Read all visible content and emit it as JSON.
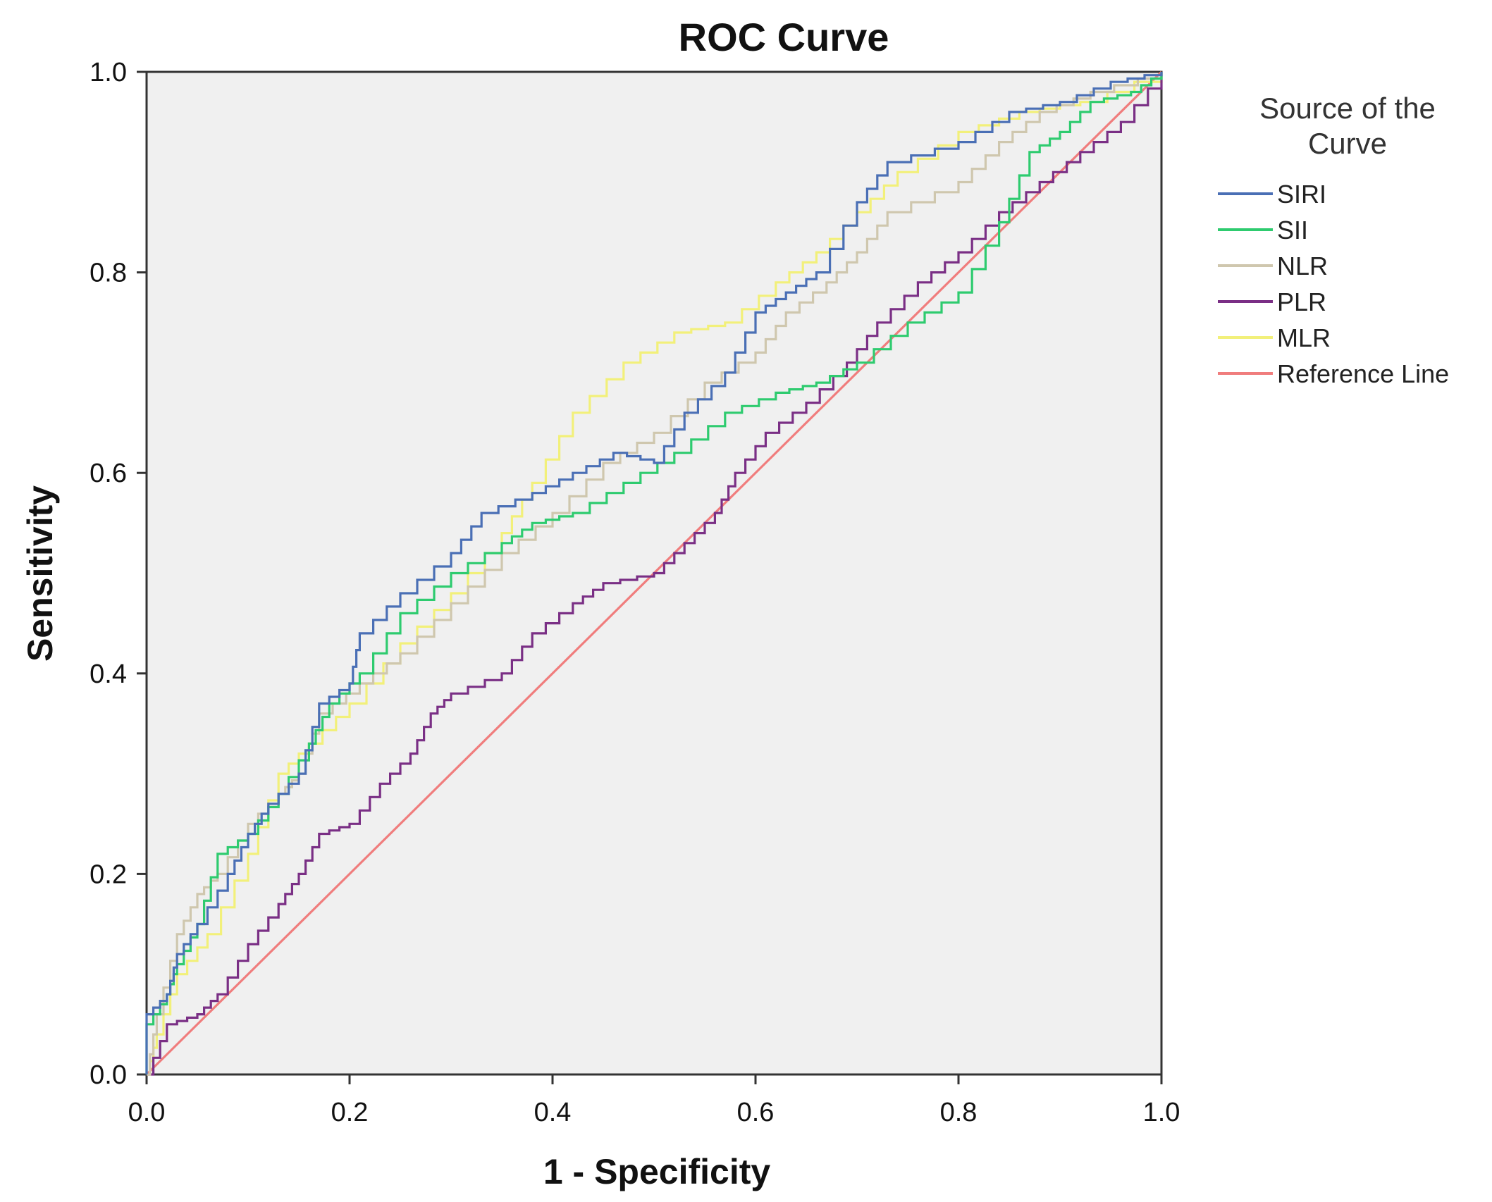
{
  "chart_data": {
    "type": "line",
    "title": "ROC Curve",
    "xlabel": "1 - Specificity",
    "ylabel": "Sensitivity",
    "xlim": [
      0,
      1
    ],
    "ylim": [
      0,
      1
    ],
    "xticks": [
      "0.0",
      "0.2",
      "0.4",
      "0.6",
      "0.8",
      "1.0"
    ],
    "yticks": [
      "0.0",
      "0.2",
      "0.4",
      "0.6",
      "0.8",
      "1.0"
    ],
    "grid": false,
    "legend": {
      "title_lines": [
        "Source of the",
        "Curve"
      ],
      "placement": "right"
    },
    "series": [
      {
        "name": "SIRI",
        "color": "#4a6fb5",
        "points": [
          [
            0,
            0
          ],
          [
            0,
            0.06
          ],
          [
            0.02,
            0.08
          ],
          [
            0.03,
            0.12
          ],
          [
            0.05,
            0.15
          ],
          [
            0.08,
            0.2
          ],
          [
            0.1,
            0.24
          ],
          [
            0.12,
            0.27
          ],
          [
            0.15,
            0.3
          ],
          [
            0.17,
            0.37
          ],
          [
            0.2,
            0.39
          ],
          [
            0.21,
            0.44
          ],
          [
            0.25,
            0.48
          ],
          [
            0.3,
            0.52
          ],
          [
            0.33,
            0.56
          ],
          [
            0.38,
            0.58
          ],
          [
            0.42,
            0.6
          ],
          [
            0.46,
            0.62
          ],
          [
            0.5,
            0.61
          ],
          [
            0.53,
            0.66
          ],
          [
            0.57,
            0.7
          ],
          [
            0.6,
            0.76
          ],
          [
            0.63,
            0.78
          ],
          [
            0.66,
            0.8
          ],
          [
            0.7,
            0.87
          ],
          [
            0.73,
            0.91
          ],
          [
            0.8,
            0.93
          ],
          [
            0.85,
            0.96
          ],
          [
            0.9,
            0.97
          ],
          [
            0.95,
            0.99
          ],
          [
            1,
            1
          ]
        ]
      },
      {
        "name": "SII",
        "color": "#2ecb6f",
        "points": [
          [
            0,
            0
          ],
          [
            0,
            0.05
          ],
          [
            0.02,
            0.08
          ],
          [
            0.03,
            0.11
          ],
          [
            0.05,
            0.15
          ],
          [
            0.07,
            0.22
          ],
          [
            0.1,
            0.24
          ],
          [
            0.13,
            0.28
          ],
          [
            0.16,
            0.33
          ],
          [
            0.18,
            0.37
          ],
          [
            0.21,
            0.4
          ],
          [
            0.25,
            0.46
          ],
          [
            0.3,
            0.5
          ],
          [
            0.35,
            0.53
          ],
          [
            0.38,
            0.55
          ],
          [
            0.42,
            0.56
          ],
          [
            0.47,
            0.59
          ],
          [
            0.52,
            0.62
          ],
          [
            0.57,
            0.66
          ],
          [
            0.62,
            0.68
          ],
          [
            0.66,
            0.69
          ],
          [
            0.7,
            0.71
          ],
          [
            0.75,
            0.75
          ],
          [
            0.8,
            0.78
          ],
          [
            0.84,
            0.85
          ],
          [
            0.87,
            0.92
          ],
          [
            0.9,
            0.94
          ],
          [
            0.93,
            0.97
          ],
          [
            0.97,
            0.98
          ],
          [
            1,
            1
          ]
        ]
      },
      {
        "name": "NLR",
        "color": "#cfc7ae",
        "points": [
          [
            0,
            0
          ],
          [
            0.01,
            0.06
          ],
          [
            0.03,
            0.14
          ],
          [
            0.05,
            0.18
          ],
          [
            0.07,
            0.2
          ],
          [
            0.1,
            0.25
          ],
          [
            0.13,
            0.28
          ],
          [
            0.15,
            0.3
          ],
          [
            0.17,
            0.36
          ],
          [
            0.21,
            0.39
          ],
          [
            0.25,
            0.42
          ],
          [
            0.3,
            0.47
          ],
          [
            0.35,
            0.52
          ],
          [
            0.4,
            0.56
          ],
          [
            0.45,
            0.61
          ],
          [
            0.5,
            0.64
          ],
          [
            0.55,
            0.69
          ],
          [
            0.6,
            0.72
          ],
          [
            0.63,
            0.76
          ],
          [
            0.67,
            0.79
          ],
          [
            0.7,
            0.82
          ],
          [
            0.73,
            0.86
          ],
          [
            0.8,
            0.89
          ],
          [
            0.84,
            0.93
          ],
          [
            0.88,
            0.96
          ],
          [
            0.93,
            0.98
          ],
          [
            1,
            1
          ]
        ]
      },
      {
        "name": "PLR",
        "color": "#7a2f85",
        "points": [
          [
            0,
            0
          ],
          [
            0.02,
            0.05
          ],
          [
            0.05,
            0.06
          ],
          [
            0.07,
            0.08
          ],
          [
            0.1,
            0.13
          ],
          [
            0.13,
            0.17
          ],
          [
            0.15,
            0.2
          ],
          [
            0.17,
            0.24
          ],
          [
            0.2,
            0.25
          ],
          [
            0.23,
            0.29
          ],
          [
            0.26,
            0.32
          ],
          [
            0.28,
            0.36
          ],
          [
            0.3,
            0.38
          ],
          [
            0.35,
            0.4
          ],
          [
            0.38,
            0.44
          ],
          [
            0.42,
            0.47
          ],
          [
            0.45,
            0.49
          ],
          [
            0.5,
            0.5
          ],
          [
            0.53,
            0.53
          ],
          [
            0.56,
            0.56
          ],
          [
            0.58,
            0.6
          ],
          [
            0.61,
            0.64
          ],
          [
            0.65,
            0.67
          ],
          [
            0.69,
            0.71
          ],
          [
            0.72,
            0.75
          ],
          [
            0.76,
            0.79
          ],
          [
            0.8,
            0.82
          ],
          [
            0.84,
            0.86
          ],
          [
            0.88,
            0.89
          ],
          [
            0.92,
            0.92
          ],
          [
            0.96,
            0.95
          ],
          [
            1,
            1
          ]
        ]
      },
      {
        "name": "MLR",
        "color": "#f2f07a",
        "points": [
          [
            0,
            0
          ],
          [
            0.01,
            0.04
          ],
          [
            0.03,
            0.1
          ],
          [
            0.06,
            0.14
          ],
          [
            0.1,
            0.22
          ],
          [
            0.13,
            0.3
          ],
          [
            0.16,
            0.33
          ],
          [
            0.2,
            0.37
          ],
          [
            0.25,
            0.43
          ],
          [
            0.3,
            0.48
          ],
          [
            0.35,
            0.54
          ],
          [
            0.38,
            0.59
          ],
          [
            0.42,
            0.66
          ],
          [
            0.47,
            0.71
          ],
          [
            0.52,
            0.74
          ],
          [
            0.57,
            0.75
          ],
          [
            0.62,
            0.79
          ],
          [
            0.66,
            0.82
          ],
          [
            0.7,
            0.86
          ],
          [
            0.74,
            0.9
          ],
          [
            0.8,
            0.94
          ],
          [
            0.86,
            0.96
          ],
          [
            0.92,
            0.97
          ],
          [
            1,
            1
          ]
        ]
      },
      {
        "name": "Reference Line",
        "color": "#f07d7d",
        "points": [
          [
            0,
            0
          ],
          [
            1,
            1
          ]
        ]
      }
    ]
  }
}
